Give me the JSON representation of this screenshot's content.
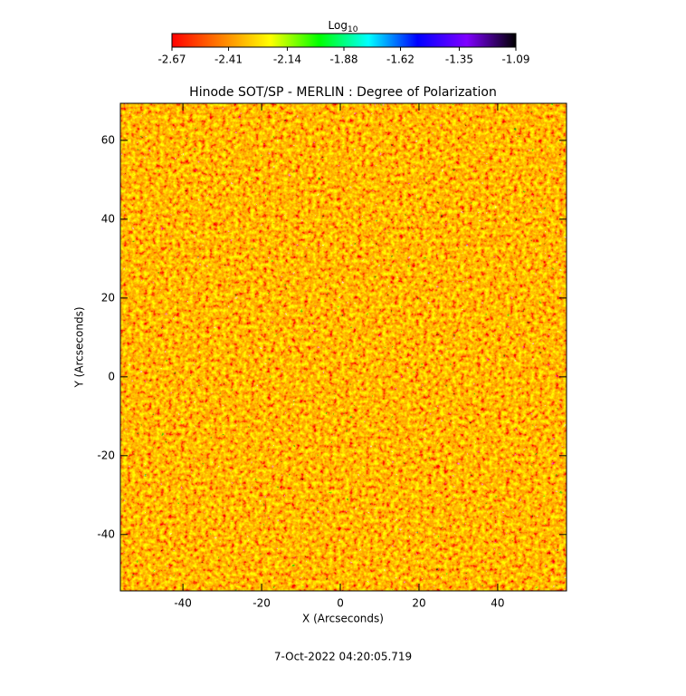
{
  "chart_data": {
    "type": "image",
    "title": "Hinode SOT/SP - MERLIN : Degree of Polarization",
    "xlabel": "X (Arcseconds)",
    "ylabel": "Y (Arcseconds)",
    "footer": "7-Oct-2022 04:20:05.719",
    "colorbar": {
      "label": "Log",
      "label_sub": "10",
      "colors": [
        "#ff0000",
        "#ff7f00",
        "#ffff00",
        "#00ff00",
        "#00ffff",
        "#0000ff",
        "#7f00ff",
        "#000000"
      ],
      "lim": [
        -2.67,
        -1.09
      ],
      "ticks": [
        -2.67,
        -2.41,
        -2.14,
        -1.88,
        -1.62,
        -1.35,
        -1.09
      ]
    },
    "xlim": [
      -55.9,
      57.5
    ],
    "xticks": [
      -40,
      -20,
      0,
      20,
      40
    ],
    "ylim": [
      -54.3,
      69.4
    ],
    "yticks": [
      -40,
      -20,
      0,
      20,
      40,
      60
    ]
  }
}
